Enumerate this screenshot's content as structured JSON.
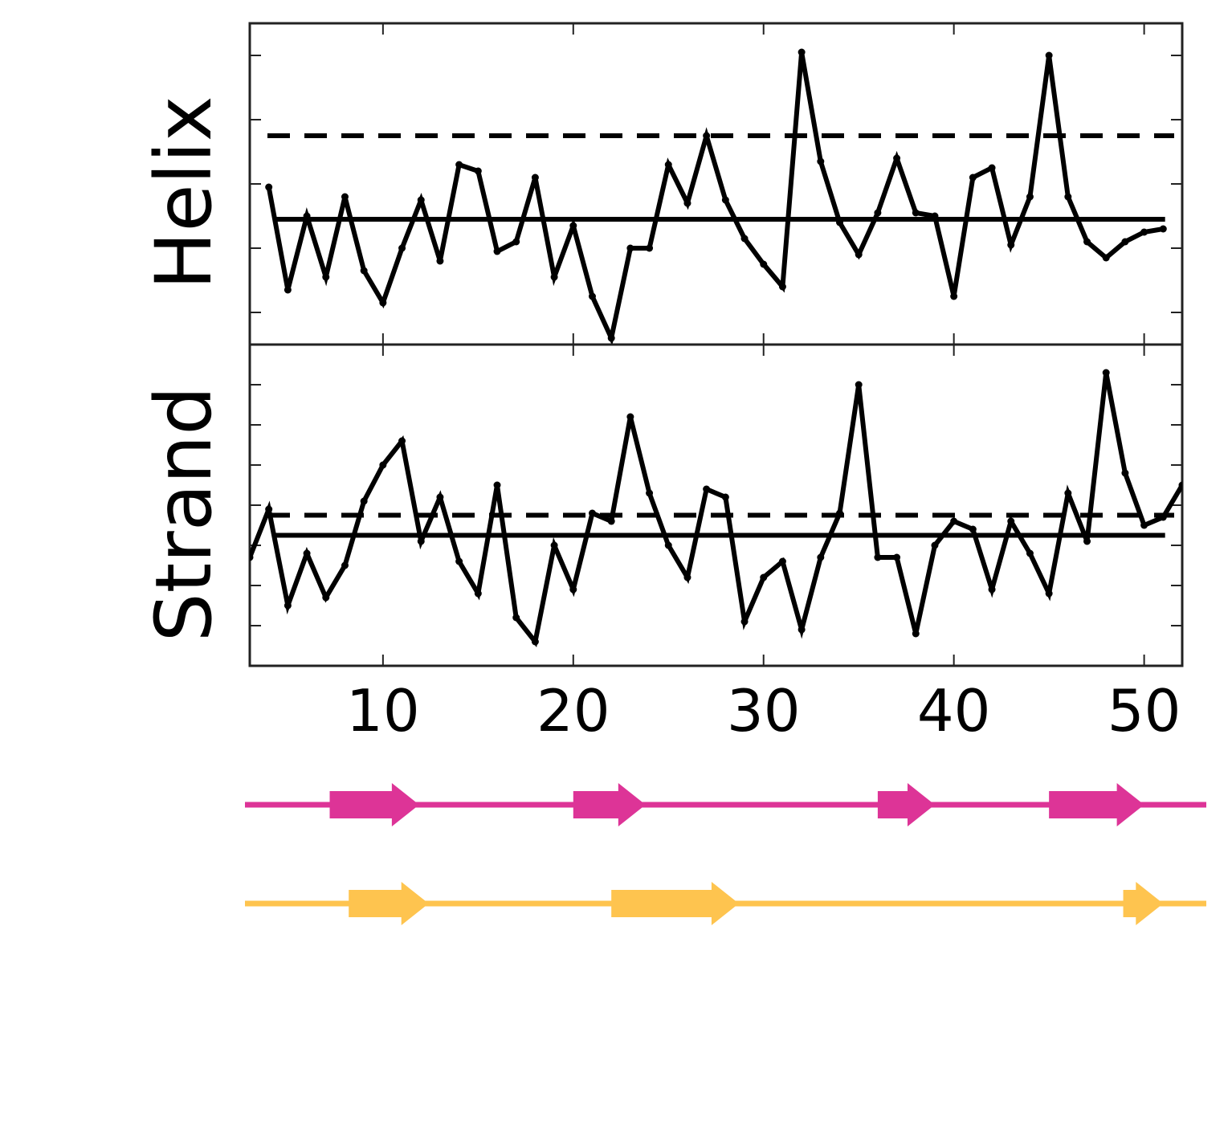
{
  "chart_data": [
    {
      "type": "line",
      "panel": "helix",
      "ylabel": "Helix",
      "xlim": [
        3,
        52
      ],
      "ylim": [
        0,
        10
      ],
      "show_y_tick_labels": false,
      "x_ticks": [
        10,
        20,
        30,
        40,
        50
      ],
      "y_ticks": [
        1,
        3,
        5,
        7,
        9
      ],
      "x": [
        4,
        5,
        6,
        7,
        8,
        9,
        10,
        11,
        12,
        13,
        14,
        15,
        16,
        17,
        18,
        19,
        20,
        21,
        22,
        23,
        24,
        25,
        26,
        27,
        28,
        29,
        30,
        31,
        32,
        33,
        34,
        35,
        36,
        37,
        38,
        39,
        40,
        41,
        42,
        43,
        44,
        45,
        46,
        47,
        48,
        49,
        50,
        51
      ],
      "values": [
        4.9,
        1.7,
        4.0,
        2.1,
        4.6,
        2.3,
        1.3,
        3.0,
        4.5,
        2.6,
        5.6,
        5.4,
        2.9,
        3.2,
        5.2,
        2.1,
        3.7,
        1.5,
        0.2,
        3.0,
        3.0,
        5.6,
        4.4,
        6.5,
        4.5,
        3.3,
        2.5,
        1.8,
        9.1,
        5.7,
        3.8,
        2.8,
        4.1,
        5.8,
        4.1,
        4.0,
        1.5,
        5.2,
        5.5,
        3.1,
        4.6,
        9.0,
        4.6,
        3.2,
        2.7,
        3.2,
        3.5,
        3.6
      ],
      "reference_lines": [
        {
          "style": "dashed",
          "value": 6.5
        },
        {
          "style": "solid",
          "value": 3.9
        }
      ]
    },
    {
      "type": "line",
      "panel": "strand",
      "ylabel": "Strand",
      "xlim": [
        3,
        52
      ],
      "ylim": [
        0,
        8
      ],
      "show_y_tick_labels": false,
      "x_ticks": [
        10,
        20,
        30,
        40,
        50
      ],
      "x_tick_labels": [
        "10",
        "20",
        "30",
        "40",
        "50"
      ],
      "y_ticks": [
        1,
        2,
        3,
        4,
        5,
        6,
        7
      ],
      "x": [
        3,
        4,
        5,
        6,
        7,
        8,
        9,
        10,
        11,
        12,
        13,
        14,
        15,
        16,
        17,
        18,
        19,
        20,
        21,
        22,
        23,
        24,
        25,
        26,
        27,
        28,
        29,
        30,
        31,
        32,
        33,
        34,
        35,
        36,
        37,
        38,
        39,
        40,
        41,
        42,
        43,
        44,
        45,
        46,
        47,
        48,
        49,
        50,
        51,
        52
      ],
      "values": [
        2.7,
        3.9,
        1.5,
        2.8,
        1.7,
        2.5,
        4.1,
        5.0,
        5.6,
        3.1,
        4.2,
        2.6,
        1.8,
        4.5,
        1.2,
        0.6,
        3.0,
        1.9,
        3.8,
        3.6,
        6.2,
        4.3,
        3.0,
        2.2,
        4.4,
        4.2,
        1.1,
        2.2,
        2.6,
        0.9,
        2.7,
        3.8,
        7.0,
        2.7,
        2.7,
        0.8,
        3.0,
        3.6,
        3.4,
        1.9,
        3.6,
        2.8,
        1.8,
        4.3,
        3.1,
        7.3,
        4.8,
        3.5,
        3.7,
        4.5
      ],
      "reference_lines": [
        {
          "style": "dashed",
          "value": 3.75
        },
        {
          "style": "solid",
          "value": 3.25
        }
      ]
    }
  ],
  "tracks": [
    {
      "color": "#dd3497",
      "arrows": [
        {
          "start": 7.2,
          "end": 11.9
        },
        {
          "start": 20.0,
          "end": 23.8
        },
        {
          "start": 36.0,
          "end": 39.0
        },
        {
          "start": 45.0,
          "end": 50.0
        }
      ]
    },
    {
      "color": "#fec44f",
      "arrows": [
        {
          "start": 8.2,
          "end": 12.4
        },
        {
          "start": 22.0,
          "end": 28.7
        },
        {
          "start": 48.9,
          "end": 51.0
        }
      ]
    }
  ]
}
